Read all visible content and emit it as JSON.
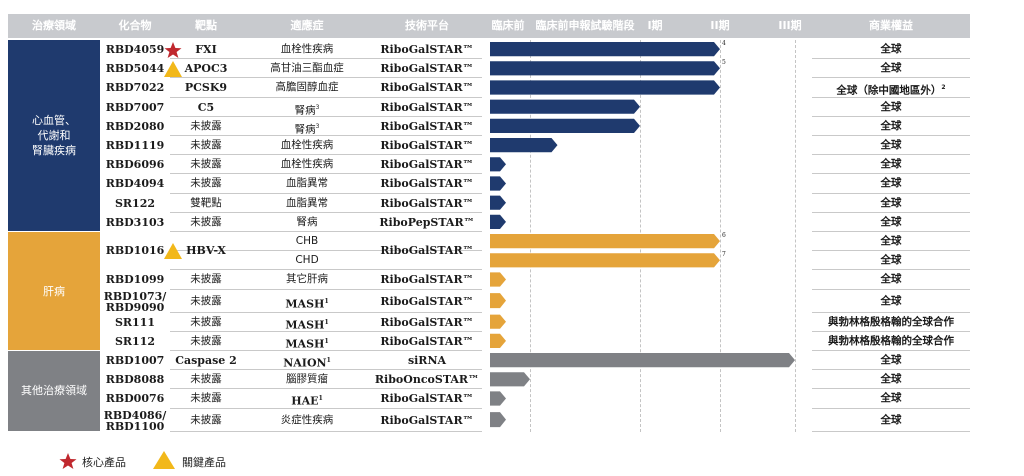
{
  "header": {
    "area": "治療領域",
    "compound": "化合物",
    "target": "靶點",
    "indication": "適應症",
    "platform": "技術平台",
    "preclinical": "臨床前",
    "preclin_ind": "臨床前申報試驗階段",
    "phase1": "I期",
    "phase2": "II期",
    "phase3": "III期",
    "rights": "商業權益"
  },
  "groups": [
    {
      "label": "心血管、\n代謝和\n腎臟疾病",
      "color": "#1f3a6e"
    },
    {
      "label": "肝病",
      "color": "#e5a43a"
    },
    {
      "label": "其他治療領域",
      "color": "#7f8185"
    }
  ],
  "rows": [
    {
      "compound": "RBD4059",
      "badge": "star",
      "target": "FXI",
      "indication": "血栓性疾病",
      "platform": "RiboGalSTAR™",
      "rights": "全球",
      "stage": 3.0,
      "note": "4",
      "group": 0
    },
    {
      "compound": "RBD5044",
      "badge": "triangle",
      "target": "APOC3",
      "indication": "高甘油三酯血症",
      "platform": "RiboGalSTAR™",
      "rights": "全球",
      "stage": 3.0,
      "note": "5",
      "group": 0
    },
    {
      "compound": "RBD7022",
      "target": "PCSK9",
      "indication": "高膽固醇血症",
      "platform": "RiboGalSTAR™",
      "rights": "全球（除中國地區外）",
      "rights_note": "2",
      "stage": 3.0,
      "group": 0
    },
    {
      "compound": "RBD7007",
      "target": "C5",
      "indication": "腎病",
      "indication_note": "3",
      "platform": "RiboGalSTAR™",
      "rights": "全球",
      "stage": 2.0,
      "group": 0
    },
    {
      "compound": "RBD2080",
      "target": "未披露",
      "indication": "腎病",
      "indication_note": "3",
      "platform": "RiboGalSTAR™",
      "rights": "全球",
      "stage": 2.0,
      "group": 0
    },
    {
      "compound": "RBD1119",
      "target": "未披露",
      "indication": "血栓性疾病",
      "platform": "RiboGalSTAR™",
      "rights": "全球",
      "stage": 1.25,
      "group": 0
    },
    {
      "compound": "RBD6096",
      "target": "未披露",
      "indication": "血栓性疾病",
      "platform": "RiboGalSTAR™",
      "rights": "全球",
      "stage": 0.4,
      "group": 0
    },
    {
      "compound": "RBD4094",
      "target": "未披露",
      "indication": "血脂異常",
      "platform": "RiboGalSTAR™",
      "rights": "全球",
      "stage": 0.4,
      "group": 0
    },
    {
      "compound": "SR122",
      "target": "雙靶點",
      "indication": "血脂異常",
      "platform": "RiboGalSTAR™",
      "rights": "全球",
      "stage": 0.4,
      "group": 0
    },
    {
      "compound": "RBD3103",
      "target": "未披露",
      "indication": "腎病",
      "platform": "RiboPepSTAR™",
      "rights": "全球",
      "stage": 0.4,
      "group": 0
    },
    {
      "compound": "RBD1016",
      "badge": "triangle",
      "target": "HBV-X",
      "indication": "CHB",
      "platform": "RiboGalSTAR™",
      "rights": "全球",
      "stage": 3.0,
      "note": "6",
      "group": 1,
      "merge_start": true
    },
    {
      "compound": "",
      "target": "",
      "indication": "CHD",
      "platform": "",
      "rights": "全球",
      "stage": 3.0,
      "note": "7",
      "group": 1,
      "merge_cont": true
    },
    {
      "compound": "RBD1099",
      "target": "未披露",
      "indication": "其它肝病",
      "platform": "RiboGalSTAR™",
      "rights": "全球",
      "stage": 0.4,
      "group": 1
    },
    {
      "compound": "RBD1073/\nRBD9090",
      "target": "未披露",
      "indication": "MASH",
      "indication_note": "1",
      "platform": "RiboGalSTAR™",
      "rights": "全球",
      "stage": 0.4,
      "group": 1,
      "tall": true
    },
    {
      "compound": "SR111",
      "target": "未披露",
      "indication": "MASH",
      "indication_note": "1",
      "platform": "RiboGalSTAR™",
      "rights": "與勃林格殷格翰的全球合作",
      "stage": 0.4,
      "group": 1
    },
    {
      "compound": "SR112",
      "target": "未披露",
      "indication": "MASH",
      "indication_note": "1",
      "platform": "RiboGalSTAR™",
      "rights": "與勃林格殷格翰的全球合作",
      "stage": 0.4,
      "group": 1
    },
    {
      "compound": "RBD1007",
      "target": "Caspase 2",
      "indication": "NAION",
      "indication_note": "1",
      "platform": "siRNA",
      "rights": "全球",
      "stage": 4.0,
      "group": 2
    },
    {
      "compound": "RBD8088",
      "target": "未披露",
      "indication": "腦膠質瘤",
      "platform": "RiboOncoSTAR™",
      "rights": "全球",
      "stage": 1.0,
      "group": 2
    },
    {
      "compound": "RBD0076",
      "target": "未披露",
      "indication": "HAE",
      "indication_note": "1",
      "platform": "RiboGalSTAR™",
      "rights": "全球",
      "stage": 0.4,
      "group": 2
    },
    {
      "compound": "RBD4086/\nRBD1100",
      "target": "未披露",
      "indication": "炎症性疾病",
      "platform": "RiboGalSTAR™",
      "rights": "全球",
      "stage": 0.4,
      "group": 2,
      "tall": true
    }
  ],
  "legend": {
    "core": "核心產品",
    "key": "關鍵產品",
    "core_color": "#c0282e",
    "key_color": "#f2b81a"
  }
}
